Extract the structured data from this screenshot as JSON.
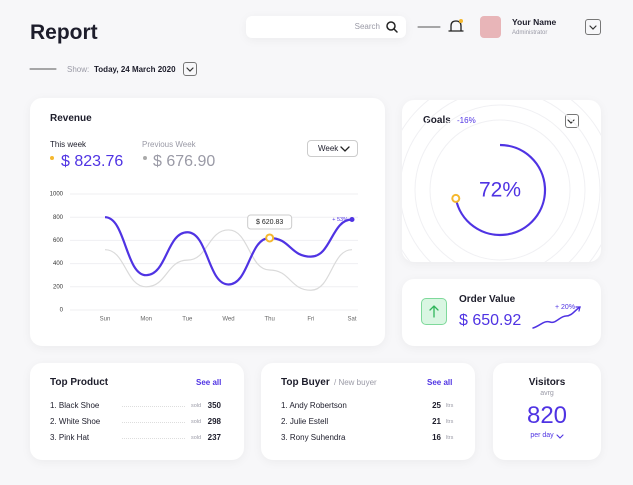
{
  "header": {
    "title": "Report",
    "search_placeholder": "Search",
    "user_name": "Your Name",
    "user_role": "Administrator",
    "show_label": "Show:",
    "date": "Today, 24 March 2020"
  },
  "revenue": {
    "title": "Revenue",
    "this_week_total": "$ 823.76",
    "previous_week_total": "$ 676.90",
    "period_button": "Week",
    "chart": {
      "type": "line",
      "categories": [
        "Sun",
        "Mon",
        "Tue",
        "Wed",
        "Thu",
        "Fri",
        "Sat"
      ],
      "series": [
        {
          "name": "This week",
          "color": "#4f33e3",
          "values": [
            800,
            300,
            670,
            220,
            620.83,
            460,
            780
          ],
          "value_labels": [
            null,
            null,
            null,
            null,
            "$ 620.83",
            null,
            null
          ]
        },
        {
          "name": "Previous Week",
          "color": "#dadada",
          "values": [
            520,
            200,
            430,
            690,
            345,
            170,
            520
          ]
        }
      ],
      "annotation": "+ 53%",
      "ylim": [
        0,
        1000
      ],
      "yticks": [
        0,
        200,
        400,
        600,
        800,
        1000
      ],
      "grid": true
    }
  },
  "goals": {
    "title": "Goals",
    "change": "-16%",
    "value": 72,
    "value_label": "72%",
    "color": "#4f33e3"
  },
  "order_value": {
    "title": "Order Value",
    "amount": "$ 650.92",
    "change": "+ 20%"
  },
  "top_product": {
    "title": "Top Product",
    "link": "See all",
    "unit": "sold",
    "rows": [
      [
        "1. Black Shoe",
        "350"
      ],
      [
        "2. White Shoe",
        "298"
      ],
      [
        "3. Pink Hat",
        "237"
      ]
    ]
  },
  "top_buyer": {
    "title": "Top Buyer",
    "subtitle": "/ New buyer",
    "link": "See all",
    "unit": "ltrs",
    "rows": [
      [
        "1. Andy Robertson",
        "25"
      ],
      [
        "2. Julie Estell",
        "21"
      ],
      [
        "3. Rony Suhendra",
        "16"
      ]
    ]
  },
  "visitors": {
    "title": "Visitors",
    "subtitle": "avrg",
    "value": "820",
    "period": "per day"
  }
}
